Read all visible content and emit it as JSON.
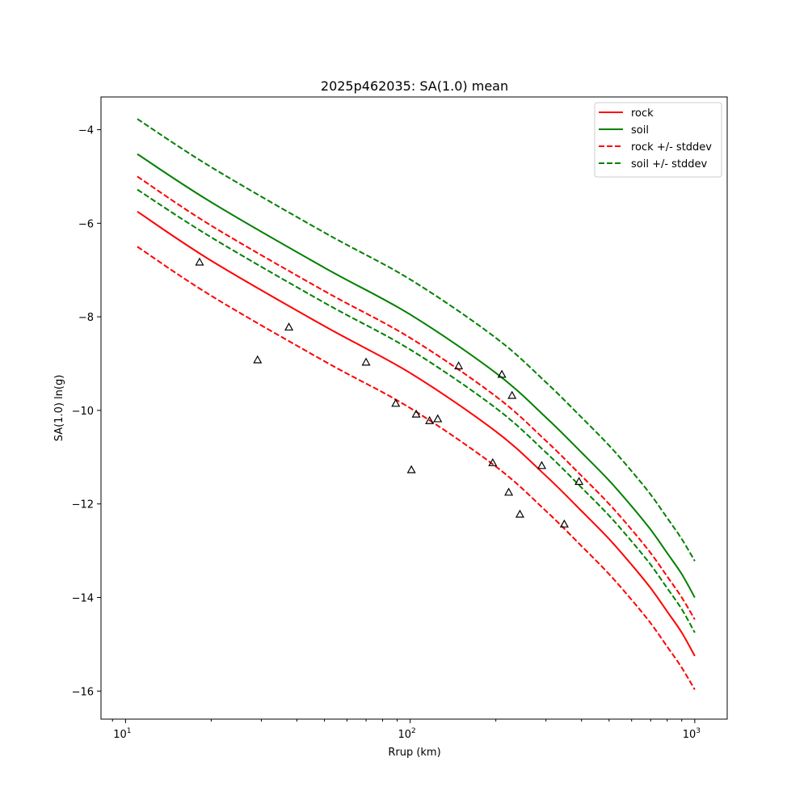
{
  "chart_data": {
    "type": "line",
    "title": "2025p462035: SA(1.0) mean",
    "xlabel": "Rrup (km)",
    "ylabel": "SA(1.0) ln(g)",
    "xscale": "log",
    "xlim": [
      8.2,
      1300
    ],
    "ylim": [
      -16.6,
      -3.3
    ],
    "xticks": [
      10,
      100,
      1000
    ],
    "xtick_labels": [
      {
        "base": "10",
        "exp": "1"
      },
      {
        "base": "10",
        "exp": "2"
      },
      {
        "base": "10",
        "exp": "3"
      }
    ],
    "yticks": [
      -4,
      -6,
      -8,
      -10,
      -12,
      -14,
      -16
    ],
    "ytick_labels": [
      "−4",
      "−6",
      "−8",
      "−10",
      "−12",
      "−14",
      "−16"
    ],
    "grid": false,
    "legend_position": "top-right",
    "series": [
      {
        "name": "rock",
        "color": "#ff0000",
        "style": "solid",
        "x": [
          11,
          20,
          50,
          100,
          200,
          300,
          400,
          500,
          600,
          700,
          800,
          900,
          1000
        ],
        "y": [
          -5.75,
          -6.8,
          -8.2,
          -9.2,
          -10.45,
          -11.4,
          -12.15,
          -12.75,
          -13.3,
          -13.8,
          -14.3,
          -14.75,
          -15.25
        ]
      },
      {
        "name": "soil",
        "color": "#008000",
        "style": "solid",
        "x": [
          11,
          20,
          50,
          100,
          200,
          300,
          400,
          500,
          600,
          700,
          800,
          900,
          1000
        ],
        "y": [
          -4.52,
          -5.55,
          -6.95,
          -7.95,
          -9.2,
          -10.15,
          -10.9,
          -11.5,
          -12.05,
          -12.55,
          -13.05,
          -13.5,
          -14.0
        ]
      },
      {
        "name": "rock +/- stddev",
        "color": "#ff0000",
        "style": "dashed",
        "x": [
          11,
          20,
          50,
          100,
          200,
          300,
          400,
          500,
          600,
          700,
          800,
          900,
          1000
        ],
        "y": [
          -5.0,
          -6.05,
          -7.45,
          -8.45,
          -9.7,
          -10.65,
          -11.4,
          -12.0,
          -12.55,
          -13.05,
          -13.55,
          -14.0,
          -14.47
        ]
      },
      {
        "name": "",
        "color": "#ff0000",
        "style": "dashed",
        "x": [
          11,
          20,
          50,
          100,
          200,
          300,
          400,
          500,
          600,
          700,
          800,
          900,
          1000
        ],
        "y": [
          -6.5,
          -7.55,
          -8.95,
          -9.95,
          -11.2,
          -12.15,
          -12.9,
          -13.5,
          -14.05,
          -14.55,
          -15.05,
          -15.5,
          -15.97
        ]
      },
      {
        "name": "soil +/- stddev",
        "color": "#008000",
        "style": "dashed",
        "x": [
          11,
          20,
          50,
          100,
          200,
          300,
          400,
          500,
          600,
          700,
          800,
          900,
          1000
        ],
        "y": [
          -3.77,
          -4.8,
          -6.2,
          -7.2,
          -8.45,
          -9.4,
          -10.15,
          -10.75,
          -11.3,
          -11.8,
          -12.3,
          -12.75,
          -13.22
        ]
      },
      {
        "name": "",
        "color": "#008000",
        "style": "dashed",
        "x": [
          11,
          20,
          50,
          100,
          200,
          300,
          400,
          500,
          600,
          700,
          800,
          900,
          1000
        ],
        "y": [
          -5.28,
          -6.3,
          -7.7,
          -8.7,
          -9.95,
          -10.9,
          -11.65,
          -12.25,
          -12.8,
          -13.3,
          -13.8,
          -14.25,
          -14.75
        ]
      }
    ],
    "observations": {
      "marker": "triangle",
      "color": "#000000",
      "x": [
        18.2,
        29.1,
        37.5,
        70,
        89,
        101,
        105,
        117,
        125,
        148,
        195,
        210,
        222,
        228,
        243,
        290,
        348,
        392
      ],
      "y": [
        -6.83,
        -8.92,
        -8.22,
        -8.97,
        -9.85,
        -11.27,
        -10.08,
        -10.22,
        -10.18,
        -9.05,
        -11.12,
        -9.23,
        -11.75,
        -9.68,
        -12.22,
        -11.18,
        -12.43,
        -11.52
      ]
    }
  }
}
